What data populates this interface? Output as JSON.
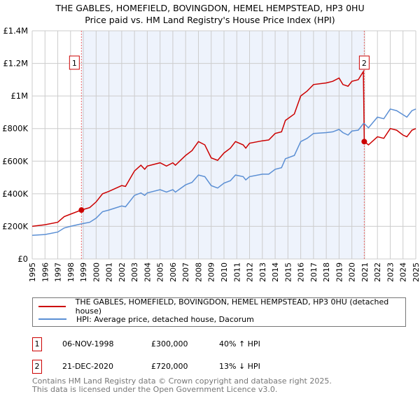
{
  "title": "THE GABLES, HOMEFIELD, BOVINGDON, HEMEL HEMPSTEAD, HP3 0HU",
  "subtitle": "Price paid vs. HM Land Registry's House Price Index (HPI)",
  "colors": {
    "property": "#cc0000",
    "hpi": "#5b8fd4",
    "shade": "#eef3fc",
    "grid": "#cccccc"
  },
  "chart_data": {
    "type": "line",
    "xlim": [
      1995,
      2025
    ],
    "ylim": [
      0,
      1400000
    ],
    "y_ticks": [
      {
        "v": 0,
        "label": "£0"
      },
      {
        "v": 200000,
        "label": "£200K"
      },
      {
        "v": 400000,
        "label": "£400K"
      },
      {
        "v": 600000,
        "label": "£600K"
      },
      {
        "v": 800000,
        "label": "£800K"
      },
      {
        "v": 1000000,
        "label": "£1M"
      },
      {
        "v": 1200000,
        "label": "£1.2M"
      },
      {
        "v": 1400000,
        "label": "£1.4M"
      }
    ],
    "x_ticks": [
      "1995",
      "1996",
      "1997",
      "1998",
      "1999",
      "2000",
      "2001",
      "2002",
      "2003",
      "2004",
      "2005",
      "2006",
      "2007",
      "2008",
      "2009",
      "2010",
      "2011",
      "2012",
      "2013",
      "2014",
      "2015",
      "2016",
      "2017",
      "2018",
      "2019",
      "2020",
      "2021",
      "2022",
      "2023",
      "2024",
      "2025"
    ],
    "shaded_range": [
      1998.85,
      2020.97
    ],
    "sales": [
      {
        "id": "1",
        "x": 1998.85,
        "y": 300000
      },
      {
        "id": "2",
        "x": 2020.97,
        "y": 720000
      }
    ],
    "series": [
      {
        "name": "THE GABLES, HOMEFIELD, BOVINGDON, HEMEL HEMPSTEAD, HP3 0HU (detached house)",
        "color": "#cc0000",
        "x": [
          1995,
          1996,
          1997,
          1997.5,
          1998,
          1998.85,
          1999.5,
          2000,
          2000.5,
          2001,
          2002,
          2002.3,
          2003,
          2003.5,
          2003.8,
          2004,
          2005,
          2005.5,
          2006,
          2006.2,
          2007,
          2007.5,
          2008,
          2008.5,
          2009,
          2009.5,
          2010,
          2010.5,
          2010.9,
          2011.5,
          2011.7,
          2012,
          2013,
          2013.5,
          2014,
          2014.5,
          2014.8,
          2015.5,
          2016,
          2016.5,
          2017,
          2018,
          2018.5,
          2019,
          2019.3,
          2019.7,
          2020,
          2020.5,
          2020.9,
          2020.97,
          2021.3,
          2022,
          2022.5,
          2023,
          2023.5,
          2024,
          2024.3,
          2024.7,
          2025
        ],
        "y": [
          200000,
          210000,
          225000,
          260000,
          275000,
          300000,
          315000,
          350000,
          400000,
          415000,
          450000,
          445000,
          540000,
          575000,
          550000,
          570000,
          590000,
          570000,
          590000,
          575000,
          635000,
          665000,
          720000,
          700000,
          620000,
          605000,
          650000,
          680000,
          720000,
          700000,
          680000,
          710000,
          725000,
          730000,
          770000,
          780000,
          850000,
          890000,
          1000000,
          1030000,
          1070000,
          1080000,
          1090000,
          1110000,
          1070000,
          1060000,
          1090000,
          1100000,
          1150000,
          720000,
          700000,
          750000,
          740000,
          800000,
          790000,
          760000,
          750000,
          790000,
          800000
        ]
      },
      {
        "name": "HPI: Average price, detached house, Dacorum",
        "color": "#5b8fd4",
        "x": [
          1995,
          1996,
          1997,
          1997.5,
          1998,
          1998.85,
          1999.5,
          2000,
          2000.5,
          2001,
          2002,
          2002.3,
          2003,
          2003.5,
          2003.8,
          2004,
          2005,
          2005.5,
          2006,
          2006.2,
          2007,
          2007.5,
          2008,
          2008.5,
          2009,
          2009.5,
          2010,
          2010.5,
          2010.9,
          2011.5,
          2011.7,
          2012,
          2013,
          2013.5,
          2014,
          2014.5,
          2014.8,
          2015.5,
          2016,
          2016.5,
          2017,
          2018,
          2018.5,
          2019,
          2019.3,
          2019.7,
          2020,
          2020.5,
          2020.9,
          2020.97,
          2021.3,
          2022,
          2022.5,
          2023,
          2023.5,
          2024,
          2024.3,
          2024.7,
          2025
        ],
        "y": [
          145000,
          150000,
          165000,
          190000,
          200000,
          215000,
          225000,
          250000,
          290000,
          300000,
          325000,
          320000,
          390000,
          405000,
          390000,
          405000,
          425000,
          410000,
          425000,
          410000,
          455000,
          470000,
          515000,
          505000,
          450000,
          435000,
          465000,
          480000,
          515000,
          505000,
          485000,
          505000,
          520000,
          520000,
          550000,
          560000,
          615000,
          635000,
          720000,
          740000,
          770000,
          775000,
          780000,
          795000,
          775000,
          760000,
          785000,
          790000,
          830000,
          830000,
          805000,
          870000,
          860000,
          920000,
          910000,
          885000,
          870000,
          910000,
          920000
        ]
      }
    ]
  },
  "legend": {
    "property": "THE GABLES, HOMEFIELD, BOVINGDON, HEMEL HEMPSTEAD, HP3 0HU (detached house)",
    "hpi": "HPI: Average price, detached house, Dacorum"
  },
  "transactions": [
    {
      "id": "1",
      "date": "06-NOV-1998",
      "price": "£300,000",
      "hpi": "40% ↑ HPI"
    },
    {
      "id": "2",
      "date": "21-DEC-2020",
      "price": "£720,000",
      "hpi": "13% ↓ HPI"
    }
  ],
  "footer": {
    "line1": "Contains HM Land Registry data © Crown copyright and database right 2025.",
    "line2": "This data is licensed under the Open Government Licence v3.0."
  }
}
